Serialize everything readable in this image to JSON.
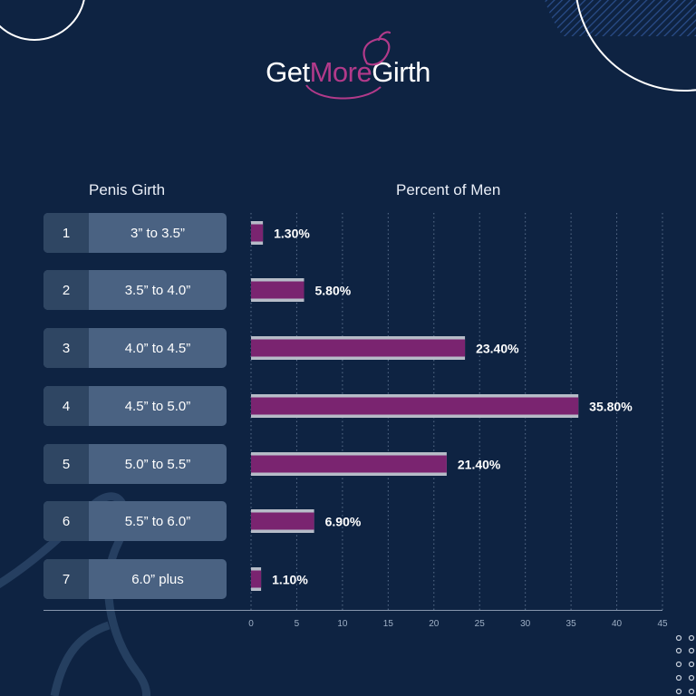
{
  "logo": {
    "part1": "Get",
    "part2": "More",
    "part3": "Girth"
  },
  "headers": {
    "girth": "Penis Girth",
    "percent": "Percent of Men"
  },
  "colors": {
    "background": "#0e2342",
    "bar": "#7a2470",
    "bar_outline": "#b6bcc8",
    "accent": "#b23a8a"
  },
  "chart_data": {
    "type": "bar",
    "orientation": "horizontal",
    "categories": [
      {
        "rank": "1",
        "range": "3” to 3.5”"
      },
      {
        "rank": "2",
        "range": "3.5” to 4.0”"
      },
      {
        "rank": "3",
        "range": "4.0” to 4.5”"
      },
      {
        "rank": "4",
        "range": "4.5” to 5.0”"
      },
      {
        "rank": "5",
        "range": "5.0” to 5.5”"
      },
      {
        "rank": "6",
        "range": "5.5” to 6.0”"
      },
      {
        "rank": "7",
        "range": "6.0” plus"
      }
    ],
    "values": [
      1.3,
      5.8,
      23.4,
      35.8,
      21.4,
      6.9,
      1.1
    ],
    "value_labels": [
      "1.30%",
      "5.80%",
      "23.40%",
      "35.80%",
      "21.40%",
      "6.90%",
      "1.10%"
    ],
    "xlim": [
      0,
      45
    ],
    "xticks": [
      0,
      5,
      10,
      15,
      20,
      25,
      30,
      35,
      40,
      45
    ],
    "grid": true
  }
}
